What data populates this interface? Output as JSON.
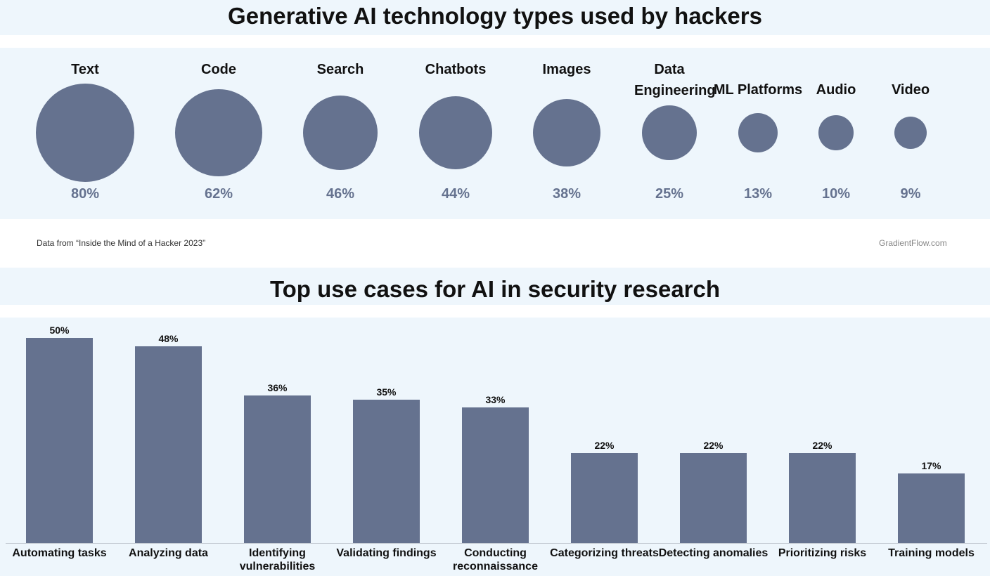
{
  "colors": {
    "background_band": "#eef6fc",
    "mark": "#65728f",
    "text": "#111111"
  },
  "chart_data": [
    {
      "type": "bubble",
      "title": "Generative AI technology types used by hackers",
      "categories": [
        "Text",
        "Code",
        "Search",
        "Chatbots",
        "Images",
        "Data Engineering",
        "ML Platforms",
        "Audio",
        "Video"
      ],
      "values": [
        80,
        62,
        46,
        44,
        38,
        25,
        13,
        10,
        9
      ],
      "value_labels": [
        "80%",
        "62%",
        "46%",
        "44%",
        "38%",
        "25%",
        "13%",
        "10%",
        "9%"
      ],
      "unit": "%"
    },
    {
      "type": "bar",
      "title": "Top use cases for AI in security research",
      "categories": [
        "Automating tasks",
        "Analyzing data",
        "Identifying vulnerabilities",
        "Validating findings",
        "Conducting reconnaissance",
        "Categorizing threats",
        "Detecting anomalies",
        "Prioritizing risks",
        "Training models"
      ],
      "values": [
        50,
        48,
        36,
        35,
        33,
        22,
        22,
        22,
        17
      ],
      "value_labels": [
        "50%",
        "48%",
        "36%",
        "35%",
        "33%",
        "22%",
        "22%",
        "22%",
        "17%"
      ],
      "unit": "%",
      "ylim": [
        0,
        55
      ]
    }
  ],
  "footer": {
    "source": "Data from “Inside the Mind of a Hacker 2023”",
    "credit": "GradientFlow.com"
  }
}
